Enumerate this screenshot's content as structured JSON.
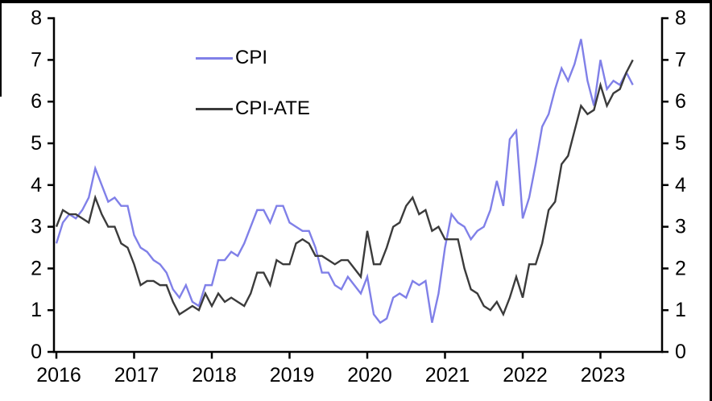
{
  "chart_data": {
    "type": "line",
    "title": "",
    "xlabel": "",
    "ylabel": "",
    "ylim": [
      0,
      8
    ],
    "dual_y_axis": true,
    "grid": false,
    "x_frequency": "monthly",
    "x_start": "2016-01",
    "x_end": "2023-06",
    "x_tick_labels": [
      "2016",
      "2017",
      "2018",
      "2019",
      "2020",
      "2021",
      "2022",
      "2023"
    ],
    "y_tick_labels": [
      "0",
      "1",
      "2",
      "3",
      "4",
      "5",
      "6",
      "7",
      "8"
    ],
    "legend_position": "inside-top-left",
    "series": [
      {
        "name": "CPI",
        "color": "#8080e8",
        "values": [
          2.6,
          3.1,
          3.3,
          3.2,
          3.4,
          3.7,
          4.4,
          4.0,
          3.6,
          3.7,
          3.5,
          3.5,
          2.8,
          2.5,
          2.4,
          2.2,
          2.1,
          1.9,
          1.5,
          1.3,
          1.6,
          1.2,
          1.1,
          1.6,
          1.6,
          2.2,
          2.2,
          2.4,
          2.3,
          2.6,
          3.0,
          3.4,
          3.4,
          3.1,
          3.5,
          3.5,
          3.1,
          3.0,
          2.9,
          2.9,
          2.5,
          1.9,
          1.9,
          1.6,
          1.5,
          1.8,
          1.6,
          1.4,
          1.8,
          0.9,
          0.7,
          0.8,
          1.3,
          1.4,
          1.3,
          1.7,
          1.6,
          1.7,
          0.7,
          1.4,
          2.5,
          3.3,
          3.1,
          3.0,
          2.7,
          2.9,
          3.0,
          3.4,
          4.1,
          3.5,
          5.1,
          5.3,
          3.2,
          3.7,
          4.5,
          5.4,
          5.7,
          6.3,
          6.8,
          6.5,
          6.9,
          7.5,
          6.5,
          5.9,
          7.0,
          6.3,
          6.5,
          6.4,
          6.7,
          6.4
        ]
      },
      {
        "name": "CPI-ATE",
        "color": "#3b3b3b",
        "values": [
          3.0,
          3.4,
          3.3,
          3.3,
          3.2,
          3.1,
          3.7,
          3.3,
          3.0,
          3.0,
          2.6,
          2.5,
          2.1,
          1.6,
          1.7,
          1.7,
          1.6,
          1.6,
          1.2,
          0.9,
          1.0,
          1.1,
          1.0,
          1.4,
          1.1,
          1.4,
          1.2,
          1.3,
          1.2,
          1.1,
          1.4,
          1.9,
          1.9,
          1.6,
          2.2,
          2.1,
          2.1,
          2.6,
          2.7,
          2.6,
          2.3,
          2.3,
          2.2,
          2.1,
          2.2,
          2.2,
          2.0,
          1.8,
          2.9,
          2.1,
          2.1,
          2.5,
          3.0,
          3.1,
          3.5,
          3.7,
          3.3,
          3.4,
          2.9,
          3.0,
          2.7,
          2.7,
          2.7,
          2.0,
          1.5,
          1.4,
          1.1,
          1.0,
          1.2,
          0.9,
          1.3,
          1.8,
          1.3,
          2.1,
          2.1,
          2.6,
          3.4,
          3.6,
          4.5,
          4.7,
          5.3,
          5.9,
          5.7,
          5.8,
          6.4,
          5.9,
          6.2,
          6.3,
          6.7,
          7.0
        ]
      }
    ]
  },
  "colors": {
    "background": "#ffffff",
    "axis": "#000000",
    "frame_border": "#000000",
    "cpi_line": "#8080e8",
    "cpi_ate_line": "#3b3b3b"
  }
}
